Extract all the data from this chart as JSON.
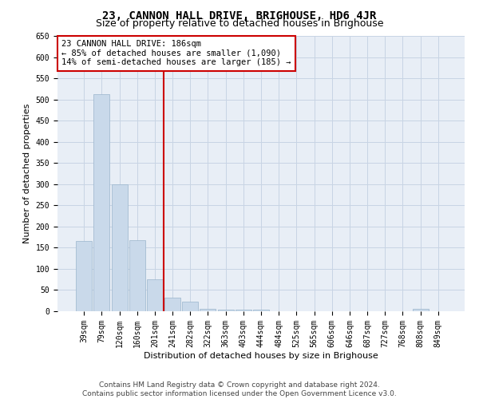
{
  "title": "23, CANNON HALL DRIVE, BRIGHOUSE, HD6 4JR",
  "subtitle": "Size of property relative to detached houses in Brighouse",
  "xlabel": "Distribution of detached houses by size in Brighouse",
  "ylabel": "Number of detached properties",
  "bar_labels": [
    "39sqm",
    "79sqm",
    "120sqm",
    "160sqm",
    "201sqm",
    "241sqm",
    "282sqm",
    "322sqm",
    "363sqm",
    "403sqm",
    "444sqm",
    "484sqm",
    "525sqm",
    "565sqm",
    "606sqm",
    "646sqm",
    "687sqm",
    "727sqm",
    "768sqm",
    "808sqm",
    "849sqm"
  ],
  "bar_values": [
    165,
    512,
    300,
    167,
    75,
    32,
    22,
    5,
    3,
    3,
    3,
    0,
    0,
    0,
    0,
    0,
    0,
    0,
    0,
    5,
    0
  ],
  "bar_color": "#c9d9ea",
  "bar_edge_color": "#9ab4cc",
  "grid_color": "#c8d4e4",
  "background_color": "#e8eef6",
  "vline_x": 4.5,
  "vline_color": "#cc0000",
  "annotation_text": "23 CANNON HALL DRIVE: 186sqm\n← 85% of detached houses are smaller (1,090)\n14% of semi-detached houses are larger (185) →",
  "annotation_box_color": "#ffffff",
  "annotation_box_edge": "#cc0000",
  "ylim": [
    0,
    650
  ],
  "yticks": [
    0,
    50,
    100,
    150,
    200,
    250,
    300,
    350,
    400,
    450,
    500,
    550,
    600,
    650
  ],
  "footer_text": "Contains HM Land Registry data © Crown copyright and database right 2024.\nContains public sector information licensed under the Open Government Licence v3.0.",
  "title_fontsize": 10,
  "subtitle_fontsize": 9,
  "annotation_fontsize": 7.5,
  "axis_label_fontsize": 8,
  "tick_fontsize": 7,
  "footer_fontsize": 6.5
}
